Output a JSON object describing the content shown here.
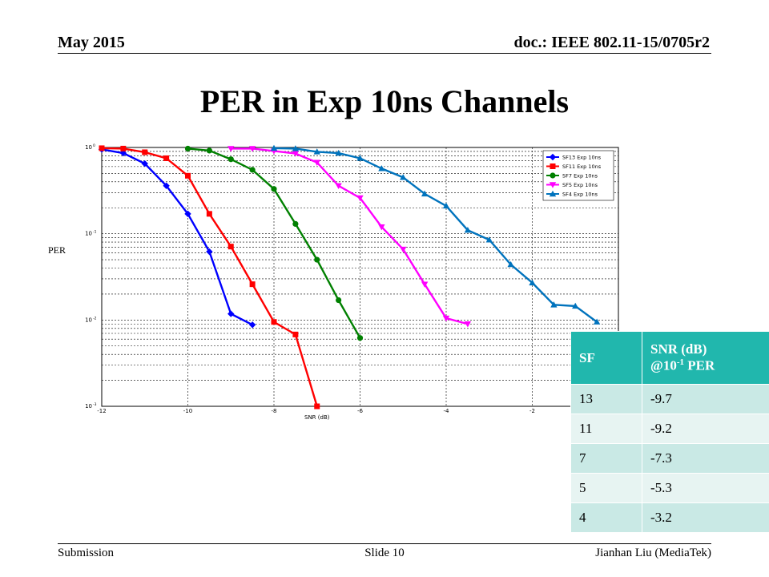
{
  "header": {
    "date": "May 2015",
    "doc": "doc.: IEEE 802.11-15/0705r2"
  },
  "slide": {
    "title": "PER in Exp 10ns Channels"
  },
  "footer": {
    "left": "Submission",
    "center": "Slide 10",
    "right": "Jianhan Liu (MediaTek)"
  },
  "table": {
    "header_sf": "SF",
    "header_snr_line1": "SNR (dB)",
    "header_snr_line2": "@10",
    "header_snr_sup": "-1",
    "header_snr_line3": " PER",
    "rows": [
      {
        "sf": "13",
        "snr": "-9.7"
      },
      {
        "sf": "11",
        "snr": "-9.2"
      },
      {
        "sf": "7",
        "snr": "-7.3"
      },
      {
        "sf": "5",
        "snr": "-5.3"
      },
      {
        "sf": "4",
        "snr": "-3.2"
      }
    ]
  },
  "chart_data": {
    "type": "line",
    "ylabel": "PER",
    "xlabel": "SNR (dB)",
    "xlim": [
      -12,
      0
    ],
    "ylim": [
      0.001,
      1
    ],
    "yscale": "log",
    "grid": true,
    "legend_position": "top-right",
    "x_ticks": [
      "-12",
      "-10",
      "-8",
      "-6",
      "-4",
      "-2"
    ],
    "y_ticks": [
      "10",
      "10",
      "10",
      "10"
    ],
    "y_tick_exponents": [
      "0",
      "-1",
      "-2",
      "-3"
    ],
    "series": [
      {
        "name": "SF13 Exp 10ns",
        "color": "#0000ff",
        "marker": "diamond",
        "x": [
          -12,
          -11.5,
          -11,
          -10.5,
          -10,
          -9.5,
          -9,
          -8.5
        ],
        "y": [
          0.95,
          0.86,
          0.65,
          0.36,
          0.17,
          0.062,
          0.0118,
          0.0088
        ]
      },
      {
        "name": "SF11 Exp 10ns",
        "color": "#ff0000",
        "marker": "square",
        "x": [
          -12,
          -11.5,
          -11,
          -10.5,
          -10,
          -9.5,
          -9,
          -8.5,
          -8,
          -7.5,
          -7
        ],
        "y": [
          0.98,
          0.97,
          0.88,
          0.75,
          0.47,
          0.17,
          0.071,
          0.026,
          0.0095,
          0.0068,
          0.001
        ]
      },
      {
        "name": "SF7 Exp 10ns",
        "color": "#008000",
        "marker": "circle",
        "x": [
          -10,
          -9.5,
          -9,
          -8.5,
          -8,
          -7.5,
          -7,
          -6.5,
          -6
        ],
        "y": [
          0.97,
          0.92,
          0.73,
          0.55,
          0.33,
          0.13,
          0.05,
          0.017,
          0.0062
        ]
      },
      {
        "name": "SF5 Exp 10ns",
        "color": "#ff00ff",
        "marker": "triangle-down",
        "x": [
          -9,
          -8.5,
          -8,
          -7.5,
          -7,
          -6.5,
          -6,
          -5.5,
          -5,
          -4.5,
          -4,
          -3.5
        ],
        "y": [
          0.97,
          0.97,
          0.91,
          0.85,
          0.67,
          0.36,
          0.26,
          0.12,
          0.066,
          0.026,
          0.0105,
          0.009
        ]
      },
      {
        "name": "SF4 Exp 10ns",
        "color": "#0073bd",
        "marker": "triangle-up",
        "x": [
          -8,
          -7.5,
          -7,
          -6.5,
          -6,
          -5.5,
          -5,
          -4.5,
          -4,
          -3.5,
          -3,
          -2.5,
          -2,
          -1.5,
          -1,
          -0.5
        ],
        "y": [
          0.98,
          0.97,
          0.89,
          0.86,
          0.75,
          0.57,
          0.45,
          0.29,
          0.21,
          0.11,
          0.085,
          0.044,
          0.027,
          0.015,
          0.0145,
          0.0095
        ]
      }
    ]
  }
}
